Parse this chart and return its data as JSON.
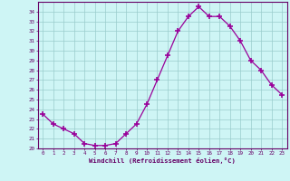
{
  "hours": [
    0,
    1,
    2,
    3,
    4,
    5,
    6,
    7,
    8,
    9,
    10,
    11,
    12,
    13,
    14,
    15,
    16,
    17,
    18,
    19,
    20,
    21,
    22,
    23
  ],
  "values": [
    23.5,
    22.5,
    22.0,
    21.5,
    20.5,
    20.3,
    20.3,
    20.5,
    21.5,
    22.5,
    24.5,
    27.0,
    29.5,
    32.0,
    33.5,
    34.5,
    33.5,
    33.5,
    32.5,
    31.0,
    29.0,
    28.0,
    26.5,
    25.5
  ],
  "line_color": "#990099",
  "marker": "+",
  "bg_color": "#cef5f5",
  "grid_color": "#99cccc",
  "xlabel": "Windchill (Refroidissement éolien,°C)",
  "xlabel_color": "#660066",
  "tick_color": "#660066",
  "ylim": [
    20,
    35
  ],
  "yticks": [
    20,
    21,
    22,
    23,
    24,
    25,
    26,
    27,
    28,
    29,
    30,
    31,
    32,
    33,
    34
  ],
  "xticks": [
    0,
    1,
    2,
    3,
    4,
    5,
    6,
    7,
    8,
    9,
    10,
    11,
    12,
    13,
    14,
    15,
    16,
    17,
    18,
    19,
    20,
    21,
    22,
    23
  ],
  "spine_color": "#660066"
}
